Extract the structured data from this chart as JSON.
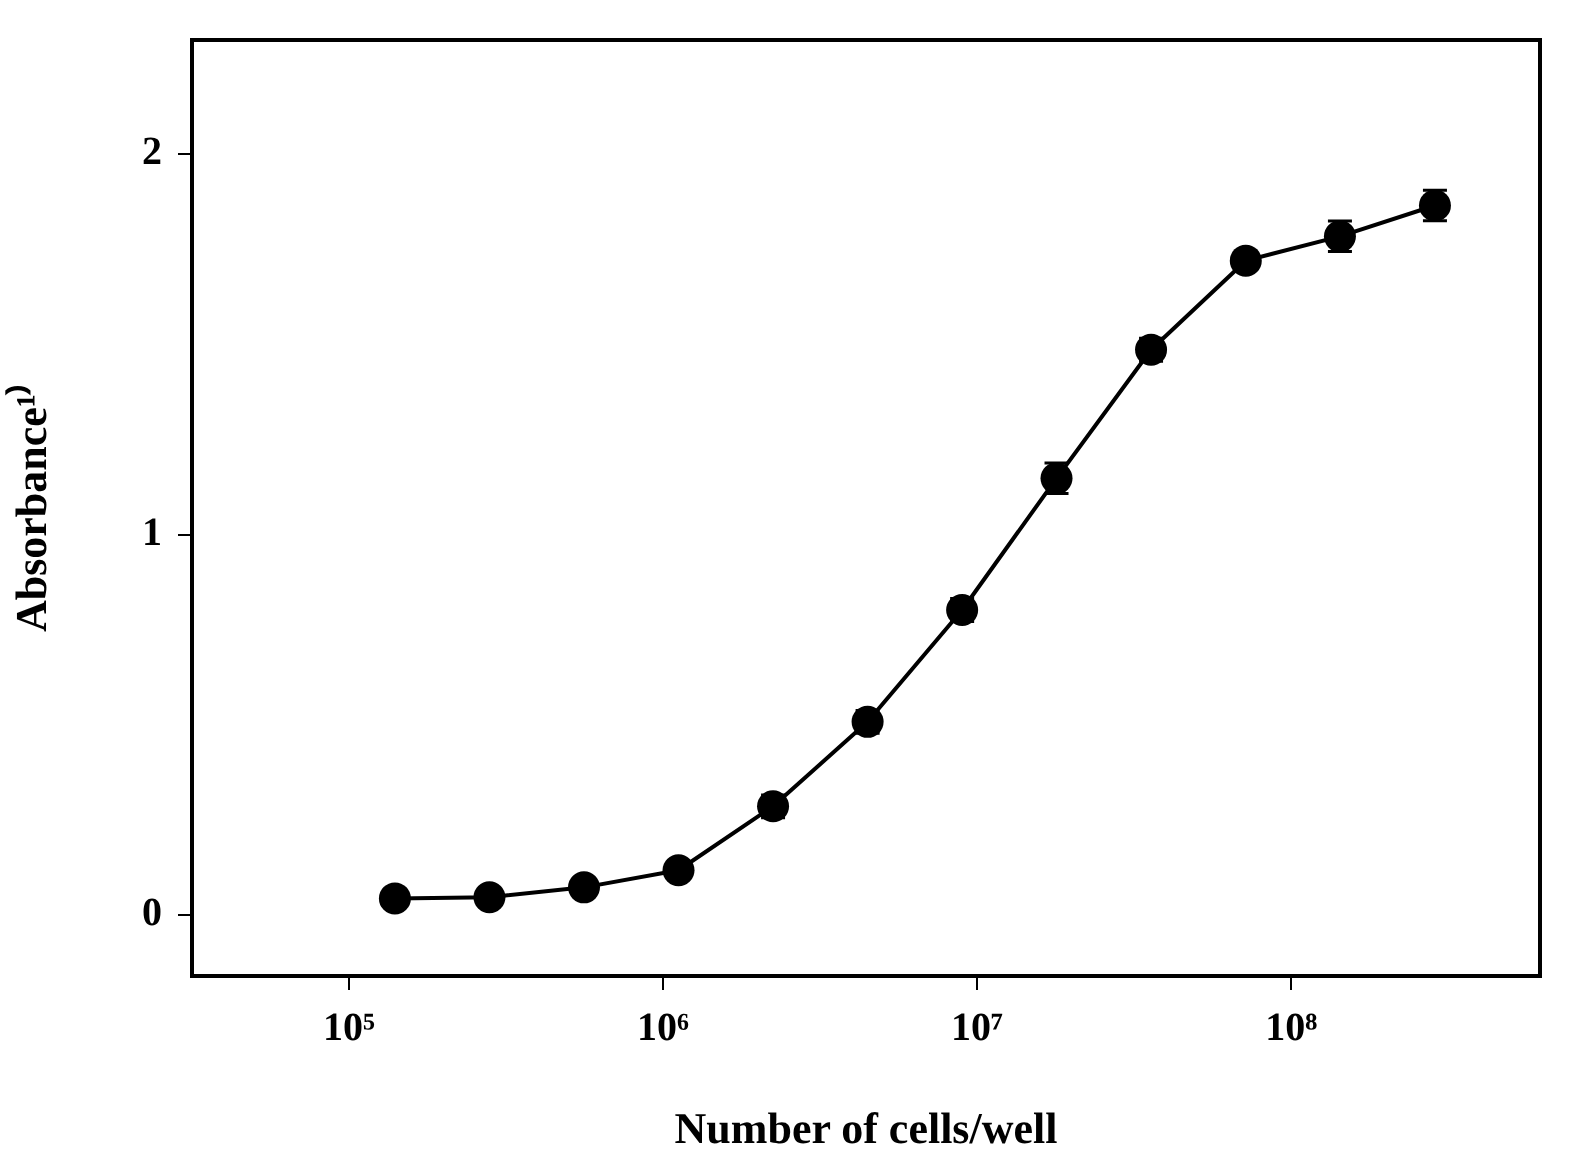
{
  "chart_data": {
    "type": "line",
    "xlabel": "Number of cells/well",
    "ylabel": "Absorbance¹⁾",
    "x": [
      140000,
      280000,
      560000,
      1120000,
      2240000,
      4480000,
      8960000,
      17900000,
      35800000,
      71700000,
      143000000,
      287000000
    ],
    "series": [
      {
        "color": "#000000",
        "values": [
          0.044,
          0.047,
          0.073,
          0.118,
          0.286,
          0.508,
          0.802,
          1.148,
          1.486,
          1.72,
          1.784,
          1.865
        ],
        "errors": [
          null,
          null,
          null,
          null,
          0.03,
          0.03,
          0.03,
          0.04,
          0.03,
          null,
          0.04,
          0.04
        ]
      }
    ],
    "log": "x",
    "xlim": [
      31623,
      620000000
    ],
    "xticks": [
      {
        "value": 100000,
        "label": "10⁵"
      },
      {
        "value": 1000000,
        "label": "10⁶"
      },
      {
        "value": 10000000,
        "label": "10⁷"
      },
      {
        "value": 100000000,
        "label": "10⁸"
      }
    ],
    "ylim": [
      -0.16,
      2.3
    ],
    "yticks": [
      0,
      1,
      2
    ],
    "grid": false,
    "legend": false,
    "marker": "circle",
    "line_style": "solid"
  }
}
